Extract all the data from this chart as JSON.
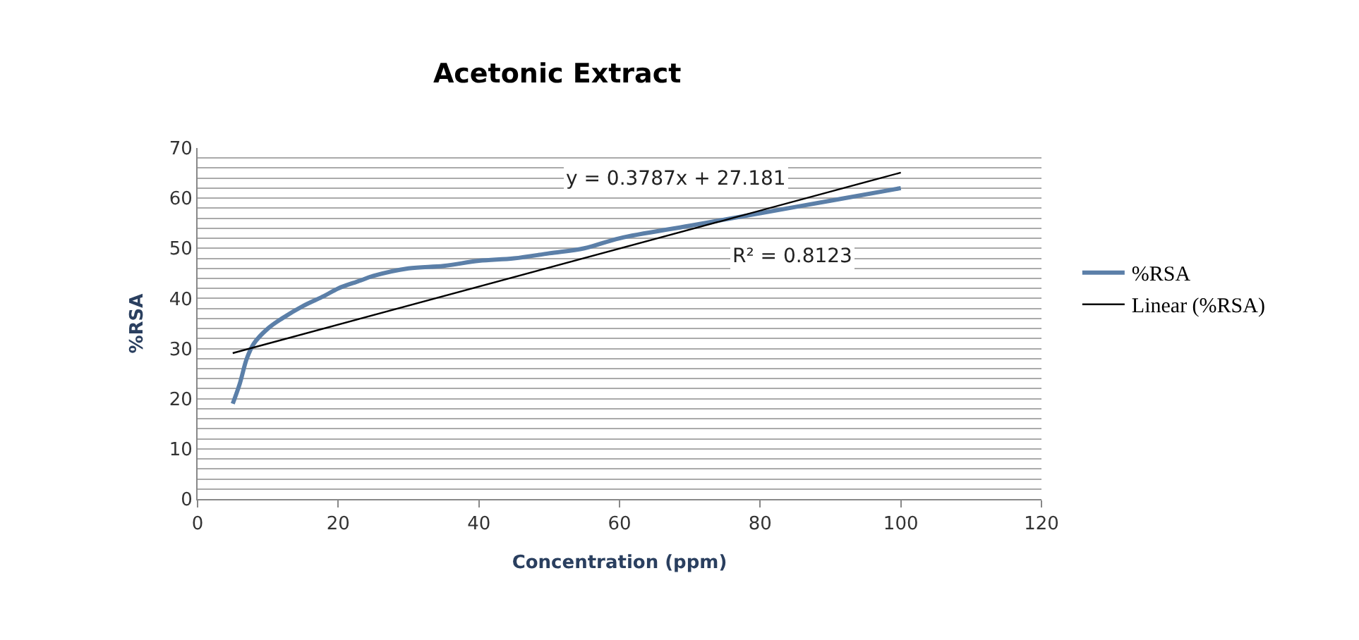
{
  "chart_data": {
    "type": "line",
    "title": "Acetonic Extract",
    "xlabel": "Concentration (ppm)",
    "ylabel": "%RSA",
    "annotations": [
      "y = 0.3787x + 27.181",
      "R² = 0.8123"
    ],
    "series": [
      {
        "name": "%RSA",
        "color": "#5b7fa8",
        "x": [
          5,
          6,
          7,
          8,
          10,
          12,
          15,
          18,
          20,
          23,
          25,
          30,
          35,
          40,
          45,
          50,
          55,
          60,
          70,
          80,
          90,
          100
        ],
        "values": [
          19,
          23,
          28,
          31,
          34,
          36,
          38.5,
          40.5,
          42,
          43.5,
          44.5,
          46,
          46.5,
          47.5,
          48,
          49,
          50,
          52,
          54.5,
          57,
          59.5,
          62
        ]
      },
      {
        "name": "Linear (%RSA)",
        "color": "#000000",
        "x": [
          5,
          100
        ],
        "values": [
          29.1,
          65.1
        ]
      }
    ],
    "xlim": [
      0,
      120
    ],
    "xticks": [
      0,
      20,
      40,
      60,
      80,
      100,
      120
    ],
    "ylim": [
      0,
      70
    ],
    "yticks": [
      0,
      {
        "value": 2,
        "label": null
      },
      {
        "value": 4,
        "label": null
      },
      {
        "value": 6,
        "label": null
      },
      {
        "value": 8,
        "label": null
      },
      10,
      {
        "value": 12,
        "label": null
      },
      {
        "value": 14,
        "label": null
      },
      {
        "value": 16,
        "label": null
      },
      {
        "value": 18,
        "label": null
      },
      20,
      {
        "value": 22,
        "label": null
      },
      {
        "value": 24,
        "label": null
      },
      {
        "value": 26,
        "label": null
      },
      {
        "value": 28,
        "label": null
      },
      30,
      {
        "value": 32,
        "label": null
      },
      {
        "value": 34,
        "label": null
      },
      {
        "value": 36,
        "label": null
      },
      {
        "value": 38,
        "label": null
      },
      40,
      {
        "value": 42,
        "label": null
      },
      {
        "value": 44,
        "label": null
      },
      {
        "value": 46,
        "label": null
      },
      {
        "value": 48,
        "label": null
      },
      50,
      {
        "value": 52,
        "label": null
      },
      {
        "value": 54,
        "label": null
      },
      {
        "value": 56,
        "label": null
      },
      {
        "value": 58,
        "label": null
      },
      60,
      {
        "value": 62,
        "label": null
      },
      {
        "value": 64,
        "label": null
      },
      {
        "value": 66,
        "label": null
      },
      {
        "value": 68,
        "label": null
      },
      70
    ],
    "grid": "y",
    "legend": "right",
    "marker": "none",
    "line_style": "solid"
  }
}
